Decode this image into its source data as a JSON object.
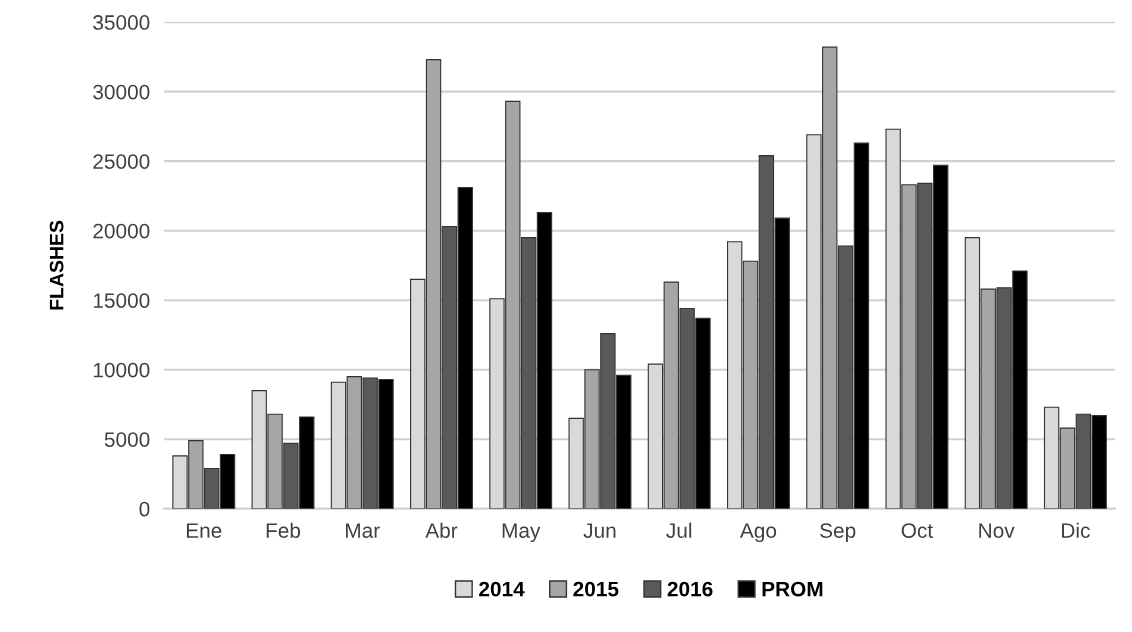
{
  "chart_data": {
    "type": "bar",
    "ylabel": "FLASHES",
    "categories": [
      "Ene",
      "Feb",
      "Mar",
      "Abr",
      "May",
      "Jun",
      "Jul",
      "Ago",
      "Sep",
      "Oct",
      "Nov",
      "Dic"
    ],
    "series": [
      {
        "name": "2014",
        "color": "#d9d9d9",
        "values": [
          3800,
          8500,
          9100,
          16500,
          15100,
          6500,
          10400,
          19200,
          26900,
          27300,
          19500,
          7300
        ]
      },
      {
        "name": "2015",
        "color": "#a6a6a6",
        "values": [
          4900,
          6800,
          9500,
          32300,
          29300,
          10000,
          16300,
          17800,
          33200,
          23300,
          15800,
          5800
        ]
      },
      {
        "name": "2016",
        "color": "#595959",
        "values": [
          2900,
          4700,
          9400,
          20300,
          19500,
          12600,
          14400,
          25400,
          18900,
          23400,
          15900,
          6800
        ]
      },
      {
        "name": "PROM",
        "color": "#000000",
        "values": [
          3900,
          6600,
          9300,
          23100,
          21300,
          9600,
          13700,
          20900,
          26300,
          24700,
          17100,
          6700
        ]
      }
    ],
    "ylim": [
      0,
      35000
    ],
    "yticks": [
      0,
      5000,
      10000,
      15000,
      20000,
      25000,
      30000,
      35000
    ],
    "grid": "y",
    "legend": "bottom"
  }
}
